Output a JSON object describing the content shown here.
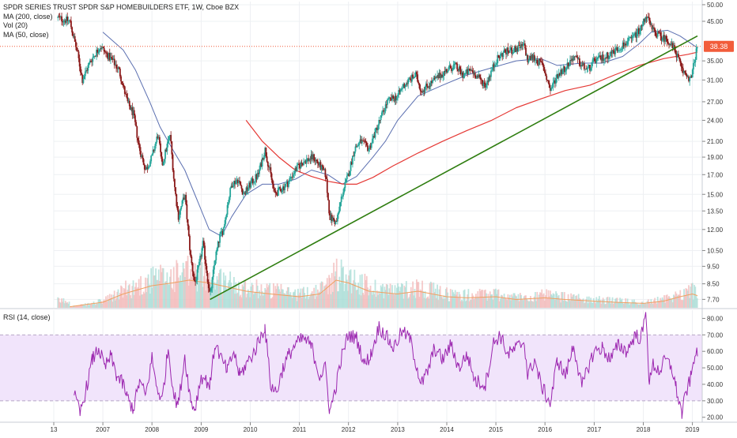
{
  "legend": {
    "title": "SPDR SERIES TRUST SPDR S&P HOMEBUILDERS ETF, 1W, Cboe BZX",
    "ma200": "MA (200, close)",
    "vol": "Vol (20)",
    "ma50": "MA (50, close)"
  },
  "rsi_label": "RSI (14, close)",
  "last_price_label": "38.38",
  "colors": {
    "up": "#26a69a",
    "down": "#8b1a1a",
    "ma50": "#5b6fb0",
    "ma200": "#e53935",
    "trendline": "#2e7d0f",
    "rsi": "#9c27b0",
    "rsi_band": "#f1e4fb",
    "price_tag": "#f25c3a",
    "vol_ma": "#f0a060"
  },
  "chart_data": [
    {
      "type": "candlestick",
      "title": "SPDR SERIES TRUST SPDR S&P HOMEBUILDERS ETF, 1W, Cboe BZX",
      "y_scale": "log",
      "ylim": [
        7.3,
        51
      ],
      "y_ticks": [
        "50.00",
        "45.00",
        "38.38",
        "35.00",
        "31.00",
        "27.00",
        "24.00",
        "21.00",
        "19.00",
        "17.00",
        "15.00",
        "13.50",
        "12.00",
        "10.50",
        "9.50",
        "8.50",
        "7.70"
      ],
      "x_ticks": [
        "13",
        "2007",
        "2008",
        "2009",
        "2010",
        "2011",
        "2012",
        "2013",
        "2014",
        "2015",
        "2016",
        "2017",
        "2018",
        "2019"
      ],
      "last_price": 38.38,
      "price_path": [
        [
          "2006-02-01",
          46
        ],
        [
          "2006-05-01",
          45
        ],
        [
          "2006-07-01",
          36
        ],
        [
          "2006-08-01",
          31
        ],
        [
          "2006-10-01",
          35
        ],
        [
          "2006-12-15",
          38.5
        ],
        [
          "2007-01-15",
          37
        ],
        [
          "2007-03-15",
          35
        ],
        [
          "2007-05-01",
          33
        ],
        [
          "2007-07-01",
          27
        ],
        [
          "2007-08-15",
          25
        ],
        [
          "2007-10-01",
          20
        ],
        [
          "2007-11-15",
          17.5
        ],
        [
          "2008-01-01",
          19
        ],
        [
          "2008-02-15",
          22
        ],
        [
          "2008-03-15",
          18
        ],
        [
          "2008-05-15",
          22
        ],
        [
          "2008-06-15",
          16
        ],
        [
          "2008-07-15",
          13
        ],
        [
          "2008-09-01",
          15
        ],
        [
          "2008-10-15",
          10
        ],
        [
          "2008-11-15",
          8.5
        ],
        [
          "2008-12-15",
          9.5
        ],
        [
          "2009-01-15",
          11
        ],
        [
          "2009-03-08",
          7.8
        ],
        [
          "2009-04-15",
          10
        ],
        [
          "2009-05-20",
          11.5
        ],
        [
          "2009-06-15",
          12
        ],
        [
          "2009-07-15",
          14
        ],
        [
          "2009-08-15",
          16
        ],
        [
          "2009-10-01",
          16.5
        ],
        [
          "2009-11-15",
          15
        ],
        [
          "2010-01-01",
          16
        ],
        [
          "2010-03-01",
          17
        ],
        [
          "2010-04-20",
          20
        ],
        [
          "2010-06-01",
          17
        ],
        [
          "2010-07-01",
          15
        ],
        [
          "2010-08-15",
          15.5
        ],
        [
          "2010-10-01",
          16
        ],
        [
          "2010-12-01",
          17.5
        ],
        [
          "2011-02-01",
          18.5
        ],
        [
          "2011-04-15",
          19
        ],
        [
          "2011-06-01",
          18
        ],
        [
          "2011-07-15",
          17
        ],
        [
          "2011-08-15",
          13
        ],
        [
          "2011-10-03",
          12.5
        ],
        [
          "2011-11-15",
          15
        ],
        [
          "2011-12-31",
          17
        ],
        [
          "2012-02-15",
          20
        ],
        [
          "2012-04-01",
          21
        ],
        [
          "2012-06-01",
          20
        ],
        [
          "2012-08-01",
          23
        ],
        [
          "2012-10-15",
          27
        ],
        [
          "2012-12-31",
          28
        ],
        [
          "2013-02-15",
          30
        ],
        [
          "2013-05-15",
          32
        ],
        [
          "2013-06-25",
          29
        ],
        [
          "2013-08-15",
          30
        ],
        [
          "2013-10-01",
          31
        ],
        [
          "2013-12-31",
          33
        ],
        [
          "2014-03-01",
          34
        ],
        [
          "2014-05-01",
          32
        ],
        [
          "2014-07-01",
          33
        ],
        [
          "2014-10-15",
          30
        ],
        [
          "2014-12-31",
          35
        ],
        [
          "2015-03-01",
          37
        ],
        [
          "2015-05-15",
          37.5
        ],
        [
          "2015-08-01",
          38.5
        ],
        [
          "2015-08-25",
          35
        ],
        [
          "2015-10-01",
          36
        ],
        [
          "2015-12-15",
          34
        ],
        [
          "2016-02-11",
          29
        ],
        [
          "2016-04-01",
          32
        ],
        [
          "2016-06-15",
          34
        ],
        [
          "2016-08-01",
          36
        ],
        [
          "2016-10-01",
          34
        ],
        [
          "2016-11-15",
          33
        ],
        [
          "2017-01-01",
          35
        ],
        [
          "2017-04-01",
          36
        ],
        [
          "2017-07-01",
          38
        ],
        [
          "2017-10-01",
          40
        ],
        [
          "2017-12-15",
          43
        ],
        [
          "2018-01-22",
          47
        ],
        [
          "2018-03-01",
          43
        ],
        [
          "2018-05-01",
          41
        ],
        [
          "2018-07-01",
          40
        ],
        [
          "2018-09-01",
          37
        ],
        [
          "2018-10-15",
          33
        ],
        [
          "2018-12-24",
          31
        ],
        [
          "2019-01-15",
          35
        ],
        [
          "2019-02-08",
          38.38
        ]
      ],
      "ma50": [
        [
          "2007-01-01",
          42
        ],
        [
          "2007-06-01",
          37.5
        ],
        [
          "2007-09-01",
          33
        ],
        [
          "2007-12-15",
          27
        ],
        [
          "2008-03-01",
          23
        ],
        [
          "2008-06-01",
          20
        ],
        [
          "2008-09-01",
          17.5
        ],
        [
          "2008-12-01",
          14.5
        ],
        [
          "2009-03-01",
          12
        ],
        [
          "2009-06-01",
          11.5
        ],
        [
          "2009-08-15",
          13
        ],
        [
          "2009-12-01",
          15
        ],
        [
          "2010-04-01",
          16
        ],
        [
          "2010-08-01",
          16
        ],
        [
          "2010-12-01",
          16.5
        ],
        [
          "2011-04-01",
          17.5
        ],
        [
          "2011-08-01",
          17
        ],
        [
          "2011-11-15",
          16
        ],
        [
          "2012-03-01",
          16.8
        ],
        [
          "2012-07-01",
          19
        ],
        [
          "2012-10-01",
          21
        ],
        [
          "2013-01-01",
          24
        ],
        [
          "2013-06-01",
          28
        ],
        [
          "2013-12-01",
          30
        ],
        [
          "2014-06-01",
          32
        ],
        [
          "2014-12-01",
          33.5
        ],
        [
          "2015-06-01",
          35
        ],
        [
          "2015-12-01",
          35.5
        ],
        [
          "2016-04-01",
          34
        ],
        [
          "2016-10-01",
          34.5
        ],
        [
          "2017-03-01",
          34.5
        ],
        [
          "2017-08-01",
          36
        ],
        [
          "2017-12-01",
          39
        ],
        [
          "2018-03-01",
          42
        ],
        [
          "2018-07-01",
          42.5
        ],
        [
          "2018-10-01",
          41
        ],
        [
          "2019-02-08",
          38
        ]
      ],
      "ma200": [
        [
          "2009-12-01",
          24
        ],
        [
          "2010-04-01",
          21
        ],
        [
          "2010-08-01",
          19
        ],
        [
          "2010-12-01",
          17.5
        ],
        [
          "2011-04-01",
          16.8
        ],
        [
          "2011-08-01",
          16.3
        ],
        [
          "2011-12-01",
          16
        ],
        [
          "2012-03-01",
          16
        ],
        [
          "2012-07-01",
          16.7
        ],
        [
          "2012-12-01",
          18
        ],
        [
          "2013-06-01",
          19.5
        ],
        [
          "2013-12-01",
          21
        ],
        [
          "2014-06-01",
          22.5
        ],
        [
          "2014-12-01",
          24
        ],
        [
          "2015-06-01",
          26
        ],
        [
          "2015-12-01",
          27.5
        ],
        [
          "2016-06-01",
          29
        ],
        [
          "2016-12-01",
          30
        ],
        [
          "2017-06-01",
          32
        ],
        [
          "2017-12-01",
          34
        ],
        [
          "2018-06-01",
          35.5
        ],
        [
          "2018-12-01",
          36.5
        ],
        [
          "2019-02-08",
          37
        ]
      ],
      "trendline": [
        [
          "2009-03-08",
          7.7
        ],
        [
          "2019-02-08",
          41
        ]
      ],
      "volume_ma": [
        [
          "2006-05-01",
          0.02
        ],
        [
          "2007-01-01",
          0.1
        ],
        [
          "2007-06-01",
          0.25
        ],
        [
          "2008-01-01",
          0.4
        ],
        [
          "2008-06-01",
          0.45
        ],
        [
          "2008-10-01",
          0.5
        ],
        [
          "2009-03-01",
          0.45
        ],
        [
          "2009-06-01",
          0.4
        ],
        [
          "2009-12-01",
          0.3
        ],
        [
          "2010-06-01",
          0.25
        ],
        [
          "2011-01-01",
          0.2
        ],
        [
          "2011-06-01",
          0.25
        ],
        [
          "2011-10-01",
          0.5
        ],
        [
          "2012-01-01",
          0.45
        ],
        [
          "2012-06-01",
          0.3
        ],
        [
          "2013-01-01",
          0.25
        ],
        [
          "2013-06-01",
          0.3
        ],
        [
          "2014-01-01",
          0.2
        ],
        [
          "2014-06-01",
          0.18
        ],
        [
          "2015-01-01",
          0.2
        ],
        [
          "2015-06-01",
          0.15
        ],
        [
          "2016-01-01",
          0.18
        ],
        [
          "2016-06-01",
          0.15
        ],
        [
          "2017-01-01",
          0.12
        ],
        [
          "2017-06-01",
          0.1
        ],
        [
          "2018-01-01",
          0.08
        ],
        [
          "2018-06-01",
          0.12
        ],
        [
          "2018-10-01",
          0.2
        ],
        [
          "2019-01-01",
          0.25
        ],
        [
          "2019-02-08",
          0.22
        ]
      ]
    },
    {
      "type": "line",
      "title": "RSI (14, close)",
      "ylim": [
        17,
        85
      ],
      "y_ticks": [
        80,
        70,
        60,
        50,
        40,
        30,
        20
      ],
      "band": [
        30,
        70
      ],
      "x_ticks": [
        "13",
        "2007",
        "2008",
        "2009",
        "2010",
        "2011",
        "2012",
        "2013",
        "2014",
        "2015",
        "2016",
        "2017",
        "2018",
        "2019"
      ],
      "values": [
        [
          "2006-06-01",
          34
        ],
        [
          "2006-07-15",
          22
        ],
        [
          "2006-09-01",
          38
        ],
        [
          "2006-10-15",
          55
        ],
        [
          "2006-12-01",
          62
        ],
        [
          "2007-01-15",
          50
        ],
        [
          "2007-03-01",
          57
        ],
        [
          "2007-04-15",
          45
        ],
        [
          "2007-06-01",
          40
        ],
        [
          "2007-07-01",
          32
        ],
        [
          "2007-08-15",
          25
        ],
        [
          "2007-10-01",
          42
        ],
        [
          "2007-11-15",
          33
        ],
        [
          "2008-01-01",
          56
        ],
        [
          "2008-02-01",
          40
        ],
        [
          "2008-03-15",
          30
        ],
        [
          "2008-05-01",
          62
        ],
        [
          "2008-06-15",
          32
        ],
        [
          "2008-07-15",
          28
        ],
        [
          "2008-09-01",
          57
        ],
        [
          "2008-10-15",
          30
        ],
        [
          "2008-11-15",
          25
        ],
        [
          "2009-01-01",
          45
        ],
        [
          "2009-03-08",
          40
        ],
        [
          "2009-04-15",
          65
        ],
        [
          "2009-06-01",
          55
        ],
        [
          "2009-07-15",
          48
        ],
        [
          "2009-09-01",
          60
        ],
        [
          "2009-10-15",
          45
        ],
        [
          "2009-12-01",
          52
        ],
        [
          "2010-02-01",
          60
        ],
        [
          "2010-04-20",
          75
        ],
        [
          "2010-06-01",
          40
        ],
        [
          "2010-07-15",
          35
        ],
        [
          "2010-09-01",
          50
        ],
        [
          "2010-10-15",
          58
        ],
        [
          "2010-12-01",
          64
        ],
        [
          "2011-02-01",
          68
        ],
        [
          "2011-04-01",
          63
        ],
        [
          "2011-06-01",
          45
        ],
        [
          "2011-07-15",
          50
        ],
        [
          "2011-08-15",
          23
        ],
        [
          "2011-10-03",
          40
        ],
        [
          "2011-11-15",
          58
        ],
        [
          "2011-12-31",
          70
        ],
        [
          "2012-03-01",
          68
        ],
        [
          "2012-05-01",
          52
        ],
        [
          "2012-06-15",
          58
        ],
        [
          "2012-08-15",
          75
        ],
        [
          "2012-10-01",
          70
        ],
        [
          "2012-12-01",
          62
        ],
        [
          "2013-02-01",
          72
        ],
        [
          "2013-04-01",
          68
        ],
        [
          "2013-06-25",
          40
        ],
        [
          "2013-08-15",
          48
        ],
        [
          "2013-10-01",
          62
        ],
        [
          "2013-12-01",
          55
        ],
        [
          "2014-02-01",
          64
        ],
        [
          "2014-04-01",
          50
        ],
        [
          "2014-06-01",
          58
        ],
        [
          "2014-08-01",
          42
        ],
        [
          "2014-10-15",
          40
        ],
        [
          "2014-12-15",
          65
        ],
        [
          "2015-02-01",
          70
        ],
        [
          "2015-04-01",
          58
        ],
        [
          "2015-06-01",
          62
        ],
        [
          "2015-08-01",
          66
        ],
        [
          "2015-08-25",
          45
        ],
        [
          "2015-10-15",
          55
        ],
        [
          "2015-12-01",
          40
        ],
        [
          "2016-02-11",
          28
        ],
        [
          "2016-04-01",
          55
        ],
        [
          "2016-06-01",
          45
        ],
        [
          "2016-08-01",
          64
        ],
        [
          "2016-10-01",
          38
        ],
        [
          "2016-11-15",
          50
        ],
        [
          "2017-01-01",
          60
        ],
        [
          "2017-03-01",
          62
        ],
        [
          "2017-05-01",
          55
        ],
        [
          "2017-07-01",
          64
        ],
        [
          "2017-09-01",
          60
        ],
        [
          "2017-11-01",
          70
        ],
        [
          "2017-12-15",
          68
        ],
        [
          "2018-01-22",
          83
        ],
        [
          "2018-02-15",
          40
        ],
        [
          "2018-03-15",
          52
        ],
        [
          "2018-05-01",
          48
        ],
        [
          "2018-06-15",
          55
        ],
        [
          "2018-08-01",
          50
        ],
        [
          "2018-09-01",
          38
        ],
        [
          "2018-10-15",
          22
        ],
        [
          "2018-11-15",
          35
        ],
        [
          "2018-12-24",
          45
        ],
        [
          "2019-01-20",
          60
        ],
        [
          "2019-02-08",
          57
        ]
      ]
    }
  ]
}
